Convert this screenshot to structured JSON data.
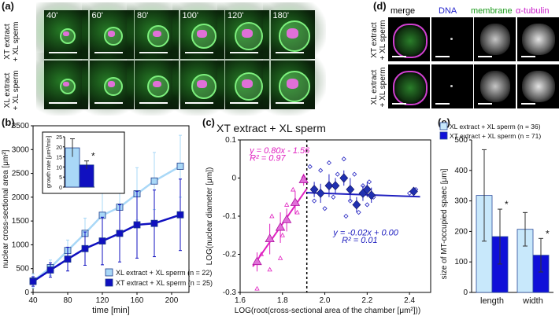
{
  "panels": {
    "a": {
      "label": "(a)",
      "times": [
        "40'",
        "60'",
        "80'",
        "100'",
        "120'",
        "180'"
      ],
      "row_labels": [
        {
          "line1": "XT extract",
          "line2": "+ XL sperm"
        },
        {
          "line1": "XL extract",
          "line2": "+ XL sperm"
        }
      ]
    },
    "b": {
      "label": "(b)"
    },
    "c": {
      "label": "(c)"
    },
    "d": {
      "label": "(d)",
      "columns": [
        "merge",
        "DNA",
        "membrane",
        "α-tubulin"
      ],
      "column_colors": [
        "#000000",
        "#2222cc",
        "#1a9a1a",
        "#cc22cc"
      ],
      "row_labels": [
        {
          "line1": "XT extract",
          "line2": "+ XL sperm"
        },
        {
          "line1": "XL extract",
          "line2": "+ XL sperm"
        }
      ]
    },
    "e": {
      "label": "(e)"
    }
  },
  "chart_data": [
    {
      "id": "b",
      "type": "line",
      "xlabel": "time [min]",
      "ylabel": "nuclear cross-sectional area [μm²]",
      "xlim": [
        40,
        220
      ],
      "ylim": [
        0,
        3500
      ],
      "xticks": [
        40,
        80,
        120,
        160,
        200
      ],
      "yticks": [
        0,
        500,
        1000,
        1500,
        2000,
        2500,
        3000,
        3500
      ],
      "x": [
        40,
        60,
        80,
        100,
        120,
        140,
        160,
        180,
        210
      ],
      "series": [
        {
          "name": "XL extract + XL sperm (n = 22)",
          "color": "#a9d8f7",
          "values": [
            240,
            520,
            880,
            1240,
            1620,
            1790,
            2070,
            2340,
            2650
          ],
          "errors": [
            150,
            160,
            220,
            320,
            500,
            500,
            550,
            600,
            650
          ]
        },
        {
          "name": "XT extract + XL sperm (n = 25)",
          "color": "#1010c0",
          "values": [
            230,
            470,
            700,
            920,
            1080,
            1240,
            1420,
            1450,
            1630
          ],
          "errors": [
            100,
            150,
            250,
            350,
            500,
            600,
            700,
            700,
            750
          ]
        }
      ],
      "inset": {
        "ylabel": "growth rate [μm²/min]",
        "ylim": [
          0,
          25
        ],
        "yticks": [
          0,
          5,
          10,
          15,
          20,
          25
        ],
        "values": [
          19.5,
          11
        ],
        "errors": [
          4.5,
          2
        ],
        "colors": [
          "#a9d8f7",
          "#1010c0"
        ],
        "annotation": "*"
      }
    },
    {
      "id": "c",
      "type": "scatter",
      "title": "XT extract + XL sperm",
      "xlabel": "LOG(root(cross-sectional area of the chamber [μm²]))",
      "ylabel": "LOG(nuclear diameter [μm])",
      "xlim": [
        1.6,
        2.5
      ],
      "ylim": [
        -0.3,
        0.1
      ],
      "xticks": [
        1.6,
        1.8,
        2.0,
        2.2,
        2.4
      ],
      "yticks": [
        -0.3,
        -0.2,
        -0.1,
        0,
        0.1
      ],
      "threshold_x": 1.915,
      "fits": [
        {
          "equation": "y = 0.80x - 1.56",
          "r2": "R² = 0.97",
          "color": "#e020c0",
          "x_range": [
            1.66,
            1.915
          ],
          "slope": 0.8,
          "intercept": -1.56
        },
        {
          "equation": "y = -0.02x + 0.00",
          "r2": "R² = 0.01",
          "color": "#2020c0",
          "x_range": [
            1.915,
            2.45
          ],
          "slope": -0.02,
          "intercept": 0.0
        }
      ],
      "means_left": [
        {
          "x": 1.68,
          "y": -0.22,
          "err": 0.025
        },
        {
          "x": 1.74,
          "y": -0.16,
          "err": 0.04
        },
        {
          "x": 1.79,
          "y": -0.13,
          "err": 0.04
        },
        {
          "x": 1.82,
          "y": -0.11,
          "err": 0.03
        },
        {
          "x": 1.86,
          "y": -0.065,
          "err": 0.03
        },
        {
          "x": 1.9,
          "y": -0.005,
          "err": 0.015
        }
      ],
      "means_right": [
        {
          "x": 1.95,
          "y": -0.03,
          "err": 0.02
        },
        {
          "x": 1.98,
          "y": -0.04,
          "err": 0.025
        },
        {
          "x": 2.02,
          "y": -0.02,
          "err": 0.03
        },
        {
          "x": 2.05,
          "y": -0.02,
          "err": 0.02
        },
        {
          "x": 2.09,
          "y": 0.0,
          "err": 0.02
        },
        {
          "x": 2.12,
          "y": -0.03,
          "err": 0.03
        },
        {
          "x": 2.15,
          "y": -0.07,
          "err": 0.02
        },
        {
          "x": 2.18,
          "y": -0.04,
          "err": 0.02
        },
        {
          "x": 2.2,
          "y": -0.03,
          "err": 0.02
        },
        {
          "x": 2.22,
          "y": -0.045,
          "err": 0.02
        },
        {
          "x": 2.42,
          "y": -0.035,
          "err": 0.01
        }
      ],
      "raw_left": [
        {
          "x": 1.68,
          "y": -0.29
        },
        {
          "x": 1.7,
          "y": -0.2
        },
        {
          "x": 1.74,
          "y": -0.24
        },
        {
          "x": 1.75,
          "y": -0.1
        },
        {
          "x": 1.79,
          "y": -0.21
        },
        {
          "x": 1.8,
          "y": -0.15
        },
        {
          "x": 1.82,
          "y": -0.07
        },
        {
          "x": 1.85,
          "y": -0.03
        },
        {
          "x": 1.87,
          "y": -0.09
        },
        {
          "x": 1.9,
          "y": 0.005
        }
      ],
      "raw_right": [
        {
          "x": 1.93,
          "y": 0.03
        },
        {
          "x": 1.95,
          "y": -0.06
        },
        {
          "x": 1.98,
          "y": 0.02
        },
        {
          "x": 2.0,
          "y": -0.08
        },
        {
          "x": 2.02,
          "y": 0.04
        },
        {
          "x": 2.04,
          "y": -0.05
        },
        {
          "x": 2.06,
          "y": 0.01
        },
        {
          "x": 2.09,
          "y": 0.05
        },
        {
          "x": 2.1,
          "y": -0.1
        },
        {
          "x": 2.12,
          "y": -0.06
        },
        {
          "x": 2.14,
          "y": 0.01
        },
        {
          "x": 2.16,
          "y": -0.09
        },
        {
          "x": 2.18,
          "y": -0.02
        },
        {
          "x": 2.2,
          "y": -0.07
        },
        {
          "x": 2.21,
          "y": -0.01
        },
        {
          "x": 2.23,
          "y": -0.05
        },
        {
          "x": 2.4,
          "y": -0.04
        },
        {
          "x": 2.43,
          "y": -0.03
        }
      ]
    },
    {
      "id": "e",
      "type": "bar",
      "ylabel": "size of MT-occupied spaec [μm]",
      "categories": [
        "length",
        "width"
      ],
      "ylim": [
        0,
        500
      ],
      "yticks": [
        0,
        100,
        200,
        300,
        400,
        500
      ],
      "series": [
        {
          "name": "XL extract + XL sperm (n = 36)",
          "color": "#c8e8fb",
          "values": [
            318,
            207
          ],
          "errors": [
            150,
            55
          ]
        },
        {
          "name": "XT extract + XL sperm (n = 71)",
          "color": "#1010d8",
          "values": [
            183,
            122
          ],
          "errors": [
            90,
            55
          ]
        }
      ],
      "annotations": [
        "*",
        "*"
      ]
    }
  ]
}
